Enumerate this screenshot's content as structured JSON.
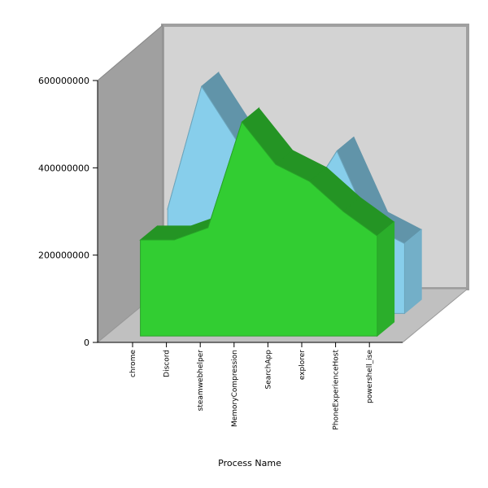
{
  "chart_data": {
    "type": "area3d",
    "x_label": "Process Name",
    "categories": [
      "chrome",
      "Discord",
      "steamwebhelper",
      "MemoryCompression",
      "SearchApp",
      "explorer",
      "PhoneExperienceHost",
      "powershell_ise"
    ],
    "series": [
      {
        "color": "#87ceeb",
        "values": [
          240000000,
          520000000,
          400000000,
          300000000,
          250000000,
          372000000,
          200000000,
          160000000
        ]
      },
      {
        "color": "#32cd32",
        "values": [
          220000000,
          220000000,
          248000000,
          490000000,
          393000000,
          354000000,
          285000000,
          229000000
        ]
      }
    ],
    "ylim": [
      0,
      600000000
    ],
    "yticks": [
      0,
      200000000,
      400000000,
      600000000
    ]
  }
}
